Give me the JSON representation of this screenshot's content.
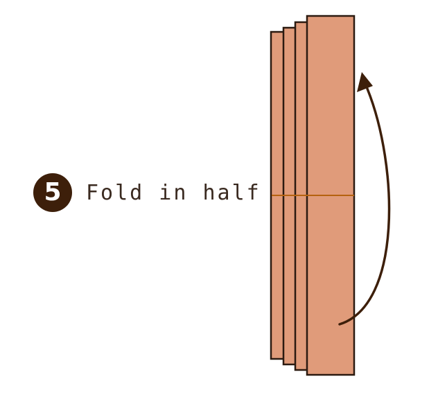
{
  "step": {
    "number": "5",
    "instruction": "Fold in half"
  },
  "colors": {
    "badge": "#3d1f0a",
    "paper": "#e09b7a",
    "paper_outline": "#2b1a10",
    "fold_line": "#b5620f",
    "arrow": "#3d1f0a"
  },
  "icons": {
    "arrow": "curved-arrow-up-icon"
  }
}
